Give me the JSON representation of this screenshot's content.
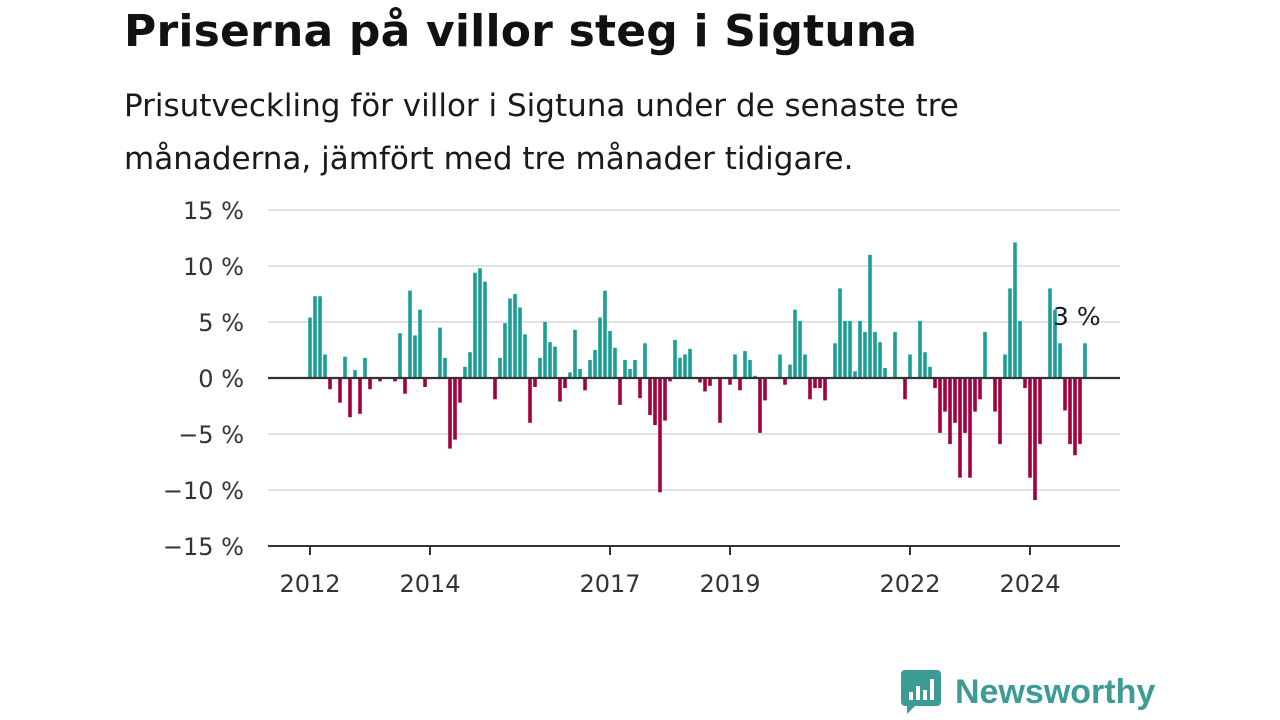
{
  "title": "Priserna på villor steg i Sigtuna",
  "subtitle": "Prisutveckling för villor i Sigtuna under de senaste tre månaderna, jämfört med tre månader tidigare.",
  "brand": "Newsworthy",
  "colors": {
    "positive": "#1a9e96",
    "negative": "#a3003f",
    "grid": "#d9d9d9",
    "axis": "#333333",
    "brand": "#3d9b96"
  },
  "chart_data": {
    "type": "bar",
    "title": "Priserna på villor steg i Sigtuna",
    "ylim": [
      -15,
      15
    ],
    "y_ticks": [
      15,
      10,
      5,
      0,
      -5,
      -10,
      -15
    ],
    "y_tick_labels": [
      "15 %",
      "10 %",
      "5 %",
      "0 %",
      "−5 %",
      "−10 %",
      "−15 %"
    ],
    "x_ticks": [
      {
        "label": "2012",
        "year": 2012
      },
      {
        "label": "2014",
        "year": 2014
      },
      {
        "label": "2017",
        "year": 2017
      },
      {
        "label": "2019",
        "year": 2019
      },
      {
        "label": "2022",
        "year": 2022
      },
      {
        "label": "2024",
        "year": 2024
      }
    ],
    "annotation": "3 %",
    "unit": "%",
    "start": "2012-01",
    "frequency": "monthly",
    "values": [
      5.4,
      7.3,
      7.3,
      2.1,
      -1.0,
      0.0,
      -2.2,
      1.9,
      -3.5,
      0.7,
      -3.2,
      1.8,
      -1.0,
      0.0,
      -0.3,
      0.0,
      0.0,
      -0.3,
      4.0,
      -1.4,
      7.8,
      3.8,
      6.1,
      -0.8,
      0.0,
      0.0,
      4.5,
      1.8,
      -6.3,
      -5.5,
      -2.2,
      1.0,
      2.3,
      9.4,
      9.8,
      8.6,
      0.0,
      -1.9,
      1.8,
      4.9,
      7.1,
      7.5,
      6.3,
      3.9,
      -4.0,
      -0.8,
      1.8,
      5.0,
      3.2,
      2.8,
      -2.1,
      -0.9,
      0.5,
      4.3,
      0.8,
      -1.1,
      1.6,
      2.5,
      5.4,
      7.8,
      4.2,
      2.7,
      -2.4,
      1.6,
      0.8,
      1.6,
      -1.8,
      3.1,
      -3.3,
      -4.2,
      -10.2,
      -3.8,
      -0.3,
      3.4,
      1.8,
      2.1,
      2.6,
      0.0,
      -0.4,
      -1.2,
      -0.7,
      0.0,
      -4.0,
      0.0,
      -0.6,
      2.1,
      -1.1,
      2.4,
      1.6,
      0.2,
      -4.9,
      -2.0,
      0.0,
      0.0,
      2.1,
      -0.6,
      1.2,
      6.1,
      5.1,
      2.1,
      -1.9,
      -0.9,
      -0.9,
      -2.0,
      0.0,
      3.1,
      8.0,
      5.1,
      5.1,
      0.6,
      5.1,
      4.1,
      11.0,
      4.1,
      3.2,
      0.9,
      0.0,
      4.1,
      0.0,
      -1.9,
      2.1,
      0.0,
      5.1,
      2.3,
      1.0,
      -0.9,
      -4.9,
      -3.0,
      -5.9,
      -4.0,
      -8.9,
      -4.9,
      -8.9,
      -3.0,
      -1.9,
      4.1,
      0.0,
      -3.0,
      -5.9,
      2.1,
      8.0,
      12.1,
      5.1,
      -0.9,
      -8.9,
      -10.9,
      -5.9,
      0.0,
      8.0,
      6.1,
      3.1,
      -2.9,
      -5.9,
      -6.9,
      -5.9,
      3.1
    ]
  }
}
